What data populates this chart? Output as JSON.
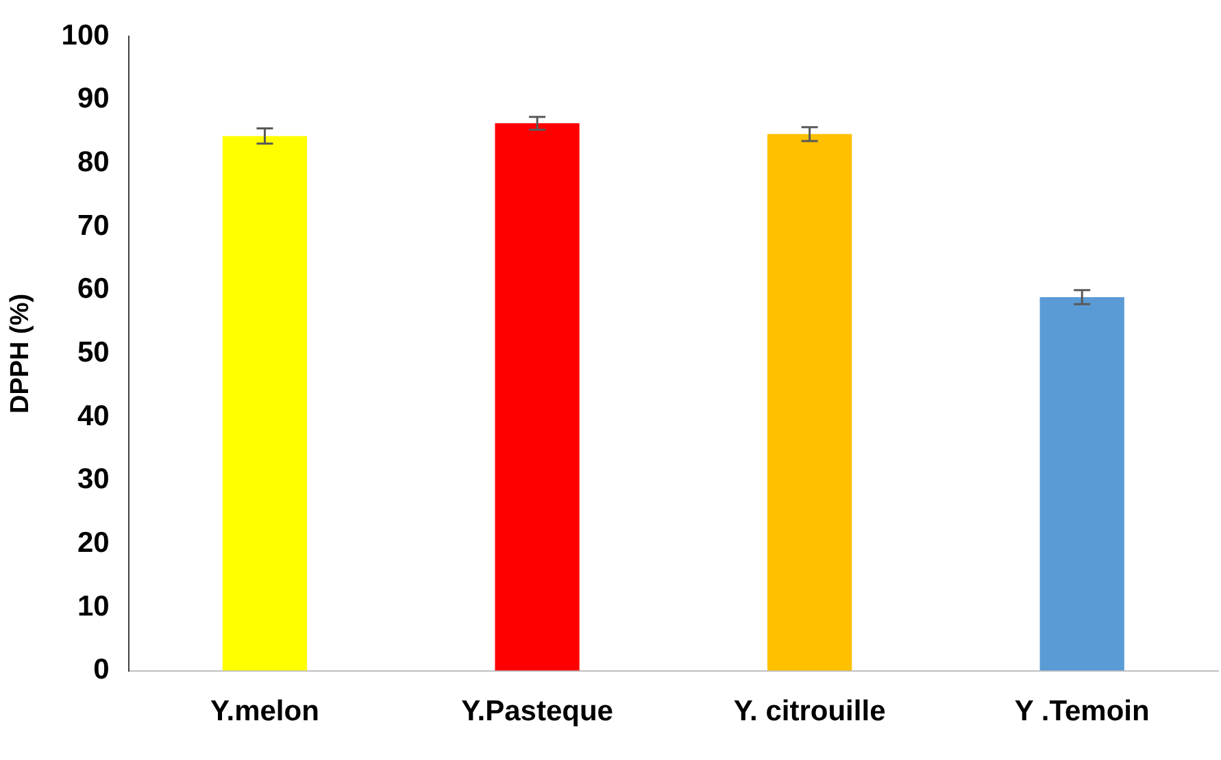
{
  "chart_data": {
    "type": "bar",
    "ylabel": "DPPH (%)",
    "categories": [
      "Y.melon",
      "Y.Pasteque",
      "Y. citrouille",
      "Y .Temoin"
    ],
    "values": [
      84.3,
      86.3,
      84.6,
      58.9
    ],
    "colors": [
      "#ffff00",
      "#ff0000",
      "#ffc000",
      "#5b9bd5"
    ],
    "errors": [
      1.2,
      1.0,
      1.1,
      1.1
    ],
    "ylim": [
      0,
      100
    ],
    "yticks": [
      0,
      10,
      20,
      30,
      40,
      50,
      60,
      70,
      80,
      90,
      100
    ],
    "grid": false,
    "legend": false
  }
}
